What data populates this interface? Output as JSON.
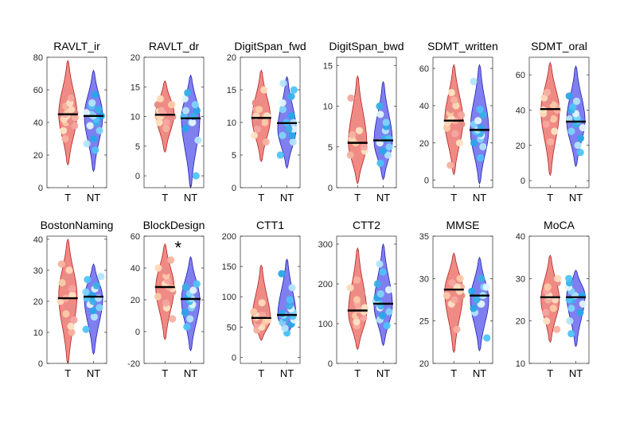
{
  "figure": {
    "x_categories": [
      "T",
      "NT"
    ]
  },
  "colors": {
    "T_fill": "#f08a84",
    "T_edge": "#b22222",
    "NT_fill": "#7f7ff0",
    "NT_edge": "#2222b2",
    "median": "#000000",
    "T_dots": [
      "#f5b2a0",
      "#ffe4c4",
      "#f4a6a0",
      "#fbcaa8",
      "#e88b86",
      "#ffdab9"
    ],
    "NT_dots": [
      "#4fc3f7",
      "#b3e5fc",
      "#29a7e8",
      "#81d4fa",
      "#e1f5fe",
      "#3ab0e6"
    ]
  },
  "chart_data": [
    {
      "type": "violin",
      "title": "RAVLT_ir",
      "ylim": [
        0,
        80
      ],
      "yticks": [
        0,
        20,
        40,
        60,
        80
      ],
      "series": [
        {
          "name": "T",
          "median": 45,
          "range": [
            14,
            78
          ],
          "mode": 45,
          "values": [
            30,
            35,
            38,
            40,
            41,
            42,
            43,
            44,
            45,
            46,
            46,
            48,
            50,
            52,
            55
          ]
        },
        {
          "name": "NT",
          "median": 44,
          "range": [
            10,
            72
          ],
          "mode": 44,
          "values": [
            23,
            27,
            30,
            35,
            38,
            40,
            42,
            44,
            44,
            45,
            46,
            48,
            50,
            52,
            57
          ]
        }
      ]
    },
    {
      "type": "violin",
      "title": "RAVLT_dr",
      "ylim": [
        -2,
        20
      ],
      "yticks": [
        0,
        5,
        10,
        15,
        20
      ],
      "series": [
        {
          "name": "T",
          "median": 10.3,
          "range": [
            4,
            16
          ],
          "mode": 10.5,
          "values": [
            8,
            9,
            9,
            10,
            10,
            10,
            10.5,
            11,
            11,
            12,
            12,
            13
          ]
        },
        {
          "name": "NT",
          "median": 9.7,
          "range": [
            -2,
            17
          ],
          "mode": 9.7,
          "values": [
            0,
            6,
            8,
            9,
            9,
            10,
            10,
            11,
            11,
            12,
            13,
            14
          ]
        }
      ]
    },
    {
      "type": "violin",
      "title": "DigitSpan_fwd",
      "ylim": [
        0,
        20
      ],
      "yticks": [
        0,
        5,
        10,
        15,
        20
      ],
      "series": [
        {
          "name": "T",
          "median": 10.7,
          "range": [
            4,
            18
          ],
          "mode": 10.7,
          "values": [
            7,
            8,
            9,
            10,
            10,
            11,
            11,
            11,
            12,
            12,
            13,
            15
          ]
        },
        {
          "name": "NT",
          "median": 9.9,
          "range": [
            3,
            17
          ],
          "mode": 9,
          "values": [
            5,
            7,
            8,
            8,
            9,
            9,
            10,
            10,
            11,
            12,
            13,
            14,
            15,
            16
          ]
        }
      ]
    },
    {
      "type": "violin",
      "title": "DigitSpan_bwd",
      "ylim": [
        0,
        16
      ],
      "yticks": [
        0,
        5,
        10,
        15
      ],
      "series": [
        {
          "name": "T",
          "median": 5.5,
          "range": [
            0.5,
            13.7
          ],
          "mode": 5.5,
          "values": [
            4,
            4.5,
            5,
            5.5,
            6,
            6,
            6.5,
            7,
            11
          ]
        },
        {
          "name": "NT",
          "median": 5.8,
          "range": [
            1,
            13
          ],
          "mode": 5.7,
          "values": [
            3,
            4,
            4.5,
            5,
            5.5,
            6,
            6,
            7,
            7.5,
            8,
            9,
            10
          ]
        }
      ]
    },
    {
      "type": "violin",
      "title": "SDMT_written",
      "ylim": [
        -4,
        66
      ],
      "yticks": [
        0,
        20,
        40,
        60
      ],
      "series": [
        {
          "name": "T",
          "median": 32,
          "range": [
            3,
            62
          ],
          "mode": 32,
          "values": [
            8,
            20,
            25,
            28,
            30,
            31,
            32,
            33,
            35,
            36,
            38,
            40,
            43,
            47
          ]
        },
        {
          "name": "NT",
          "median": 27,
          "range": [
            -2,
            62
          ],
          "mode": 27,
          "values": [
            12,
            18,
            20,
            22,
            24,
            25,
            26,
            27,
            28,
            30,
            32,
            35,
            38,
            53
          ]
        }
      ]
    },
    {
      "type": "violin",
      "title": "SDMT_oral",
      "ylim": [
        -4,
        70
      ],
      "yticks": [
        0,
        20,
        40,
        60
      ],
      "series": [
        {
          "name": "T",
          "median": 40.6,
          "range": [
            3,
            67
          ],
          "mode": 40,
          "values": [
            22,
            28,
            32,
            35,
            36,
            38,
            40,
            40,
            42,
            43,
            45,
            47,
            50
          ]
        },
        {
          "name": "NT",
          "median": 33.5,
          "range": [
            8,
            65
          ],
          "mode": 34,
          "values": [
            16,
            20,
            24,
            28,
            30,
            32,
            34,
            35,
            35,
            36,
            38,
            40,
            42,
            45,
            48
          ]
        }
      ]
    },
    {
      "type": "violin",
      "title": "BostonNaming",
      "ylim": [
        0,
        41
      ],
      "yticks": [
        0,
        10,
        20,
        30,
        40
      ],
      "series": [
        {
          "name": "T",
          "median": 21,
          "range": [
            0,
            40
          ],
          "mode": 22,
          "values": [
            10,
            12,
            14,
            16,
            18,
            20,
            21,
            22,
            24,
            26,
            28,
            30,
            32
          ]
        },
        {
          "name": "NT",
          "median": 21.5,
          "range": [
            3,
            32
          ],
          "mode": 21,
          "values": [
            11,
            15,
            17,
            18,
            19,
            20,
            21,
            21,
            22,
            23,
            24,
            25,
            27,
            28
          ]
        }
      ]
    },
    {
      "type": "violin",
      "title": "BlockDesign",
      "ylim": [
        -20,
        60
      ],
      "yticks": [
        -20,
        0,
        20,
        40,
        60
      ],
      "annotation": "*",
      "series": [
        {
          "name": "T",
          "median": 28,
          "range": [
            -5,
            55
          ],
          "mode": 28,
          "values": [
            8,
            15,
            18,
            22,
            25,
            27,
            28,
            30,
            32,
            35,
            38,
            40,
            45
          ]
        },
        {
          "name": "NT",
          "median": 20.5,
          "range": [
            -12,
            47
          ],
          "mode": 20,
          "values": [
            3,
            8,
            12,
            15,
            17,
            19,
            20,
            21,
            22,
            24,
            26,
            28,
            30
          ]
        }
      ]
    },
    {
      "type": "violin",
      "title": "CTT1",
      "ylim": [
        -10,
        200
      ],
      "yticks": [
        0,
        50,
        100,
        150,
        200
      ],
      "series": [
        {
          "name": "T",
          "median": 65,
          "range": [
            28,
            152
          ],
          "mode": 62,
          "values": [
            45,
            50,
            55,
            58,
            60,
            62,
            65,
            68,
            70,
            75,
            80,
            90
          ]
        },
        {
          "name": "NT",
          "median": 70,
          "range": [
            35,
            162
          ],
          "mode": 68,
          "values": [
            40,
            48,
            55,
            58,
            62,
            65,
            68,
            70,
            72,
            75,
            80,
            85,
            95,
            115,
            138
          ]
        }
      ]
    },
    {
      "type": "violin",
      "title": "CTT2",
      "ylim": [
        0,
        320
      ],
      "yticks": [
        0,
        100,
        200,
        300
      ],
      "series": [
        {
          "name": "T",
          "median": 133,
          "range": [
            35,
            290
          ],
          "mode": 128,
          "values": [
            95,
            105,
            115,
            120,
            125,
            130,
            135,
            140,
            150,
            160,
            175,
            190,
            210
          ]
        },
        {
          "name": "NT",
          "median": 150,
          "range": [
            45,
            300
          ],
          "mode": 145,
          "values": [
            95,
            110,
            120,
            130,
            140,
            145,
            150,
            155,
            165,
            175,
            185,
            200,
            230,
            250
          ]
        }
      ]
    },
    {
      "type": "violin",
      "title": "MMSE",
      "ylim": [
        20,
        35
      ],
      "yticks": [
        20,
        25,
        30,
        35
      ],
      "series": [
        {
          "name": "T",
          "median": 28.7,
          "range": [
            21.3,
            33
          ],
          "mode": 28.5,
          "values": [
            24,
            27,
            27.5,
            28,
            28,
            28.5,
            29,
            29,
            29.5,
            30
          ]
        },
        {
          "name": "NT",
          "median": 28,
          "range": [
            21.5,
            32.5
          ],
          "mode": 27.5,
          "values": [
            23,
            26,
            26.5,
            27,
            27,
            27.5,
            28,
            28,
            28.5,
            29,
            29,
            30
          ]
        }
      ]
    },
    {
      "type": "violin",
      "title": "MoCA",
      "ylim": [
        10,
        40
      ],
      "yticks": [
        10,
        20,
        30,
        40
      ],
      "series": [
        {
          "name": "T",
          "median": 25.6,
          "range": [
            15,
            35.5
          ],
          "mode": 25,
          "values": [
            18,
            20,
            22,
            23,
            24,
            25,
            25,
            26,
            27,
            28,
            29,
            30
          ]
        },
        {
          "name": "NT",
          "median": 25.6,
          "range": [
            14,
            32
          ],
          "mode": 26,
          "values": [
            17,
            20,
            22,
            23,
            24,
            25,
            25,
            26,
            26,
            27,
            28,
            29,
            30
          ]
        }
      ]
    }
  ]
}
